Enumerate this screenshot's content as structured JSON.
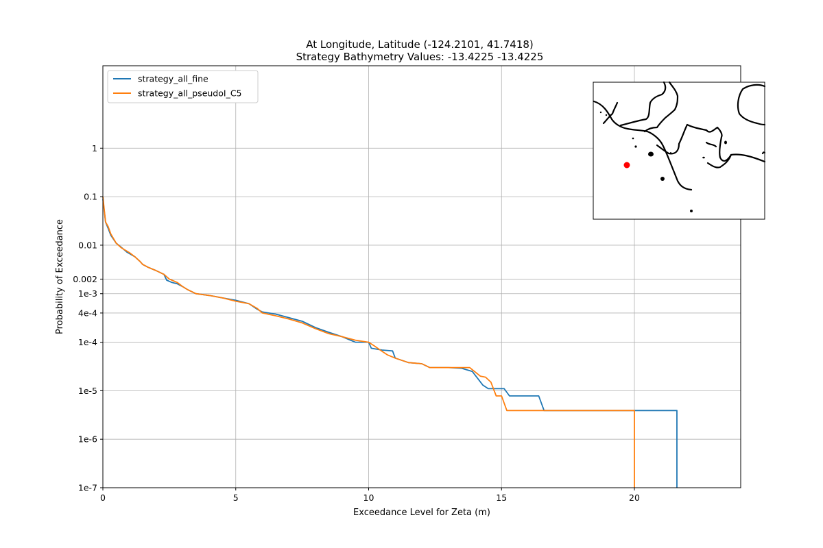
{
  "chart_data": {
    "type": "line",
    "title_line1": "At Longitude, Latitude (-124.2101,  41.7418)",
    "title_line2": "Strategy Bathymetry Values:  -13.4225  -13.4225",
    "xlabel": "Exceedance Level for Zeta (m)",
    "ylabel": "Probability of Exceedance",
    "xlim": [
      0,
      24
    ],
    "ylim": [
      1e-07,
      50
    ],
    "y_scale": "log",
    "grid": true,
    "legend_position": "upper-left",
    "x_ticks": [
      {
        "value": 0,
        "label": "0"
      },
      {
        "value": 5,
        "label": "5"
      },
      {
        "value": 10,
        "label": "10"
      },
      {
        "value": 15,
        "label": "15"
      },
      {
        "value": 20,
        "label": "20"
      }
    ],
    "y_ticks": [
      {
        "value": 1,
        "label": "1"
      },
      {
        "value": 0.1,
        "label": "0.1"
      },
      {
        "value": 0.01,
        "label": "0.01"
      },
      {
        "value": 0.002,
        "label": "0.002"
      },
      {
        "value": 0.001,
        "label": "1e-3"
      },
      {
        "value": 0.0004,
        "label": "4e-4"
      },
      {
        "value": 0.0001,
        "label": "1e-4"
      },
      {
        "value": 1e-05,
        "label": "1e-5"
      },
      {
        "value": 1e-06,
        "label": "1e-6"
      },
      {
        "value": 1e-07,
        "label": "1e-7"
      }
    ],
    "series": [
      {
        "name": "strategy_all_fine",
        "color": "#1f77b4",
        "points": [
          [
            0,
            0.09
          ],
          [
            0.1,
            0.03
          ],
          [
            0.2,
            0.022
          ],
          [
            0.3,
            0.016
          ],
          [
            0.5,
            0.011
          ],
          [
            0.7,
            0.009
          ],
          [
            0.9,
            0.0072
          ],
          [
            1.2,
            0.0058
          ],
          [
            1.4,
            0.0046
          ],
          [
            1.5,
            0.004
          ],
          [
            1.7,
            0.0035
          ],
          [
            2.0,
            0.003
          ],
          [
            2.3,
            0.0025
          ],
          [
            2.4,
            0.0019
          ],
          [
            2.6,
            0.0017
          ],
          [
            2.8,
            0.0016
          ],
          [
            3.0,
            0.0014
          ],
          [
            3.2,
            0.0012
          ],
          [
            3.5,
            0.001
          ],
          [
            4.0,
            0.00092
          ],
          [
            4.5,
            0.00082
          ],
          [
            5.0,
            0.00073
          ],
          [
            5.5,
            0.00062
          ],
          [
            5.8,
            0.00048
          ],
          [
            6.0,
            0.00042
          ],
          [
            6.5,
            0.00038
          ],
          [
            7.0,
            0.00032
          ],
          [
            7.5,
            0.00027
          ],
          [
            8.0,
            0.0002
          ],
          [
            8.5,
            0.00016
          ],
          [
            9.0,
            0.00013
          ],
          [
            9.5,
            0.0001
          ],
          [
            10.0,
            0.0001
          ],
          [
            10.1,
            7.5e-05
          ],
          [
            10.5,
            6.9e-05
          ],
          [
            10.9,
            6.6e-05
          ],
          [
            11.0,
            4.7e-05
          ],
          [
            11.5,
            3.8e-05
          ],
          [
            12.0,
            3.6e-05
          ],
          [
            12.3,
            3e-05
          ],
          [
            13.0,
            3e-05
          ],
          [
            13.5,
            2.9e-05
          ],
          [
            13.9,
            2.5e-05
          ],
          [
            14.1,
            1.8e-05
          ],
          [
            14.3,
            1.3e-05
          ],
          [
            14.5,
            1.1e-05
          ],
          [
            15.0,
            1.1e-05
          ],
          [
            15.1,
            1.1e-05
          ],
          [
            15.3,
            7.8e-06
          ],
          [
            16.4,
            7.8e-06
          ],
          [
            16.6,
            3.9e-06
          ],
          [
            21.6,
            3.9e-06
          ],
          [
            21.6,
            1e-07
          ]
        ]
      },
      {
        "name": "strategy_all_pseudoI_C5",
        "color": "#ff7f0e",
        "points": [
          [
            0,
            0.1
          ],
          [
            0.1,
            0.03
          ],
          [
            0.2,
            0.024
          ],
          [
            0.3,
            0.017
          ],
          [
            0.5,
            0.011
          ],
          [
            0.7,
            0.0088
          ],
          [
            1.0,
            0.007
          ],
          [
            1.2,
            0.0058
          ],
          [
            1.4,
            0.0046
          ],
          [
            1.5,
            0.004
          ],
          [
            1.7,
            0.0035
          ],
          [
            2.0,
            0.003
          ],
          [
            2.3,
            0.0025
          ],
          [
            2.5,
            0.002
          ],
          [
            2.8,
            0.0017
          ],
          [
            3.0,
            0.0014
          ],
          [
            3.2,
            0.0012
          ],
          [
            3.5,
            0.001
          ],
          [
            4.0,
            0.00092
          ],
          [
            4.5,
            0.00082
          ],
          [
            5.0,
            0.0007
          ],
          [
            5.5,
            0.00062
          ],
          [
            5.8,
            0.0005
          ],
          [
            6.0,
            0.0004
          ],
          [
            6.5,
            0.00035
          ],
          [
            7.0,
            0.0003
          ],
          [
            7.5,
            0.00025
          ],
          [
            8.0,
            0.00019
          ],
          [
            8.5,
            0.00015
          ],
          [
            9.0,
            0.00013
          ],
          [
            9.5,
            0.00011
          ],
          [
            10.0,
            0.0001
          ],
          [
            10.2,
            8.5e-05
          ],
          [
            10.5,
            6.5e-05
          ],
          [
            10.7,
            5.5e-05
          ],
          [
            11.0,
            4.7e-05
          ],
          [
            11.5,
            3.8e-05
          ],
          [
            12.0,
            3.6e-05
          ],
          [
            12.3,
            3e-05
          ],
          [
            13.0,
            3e-05
          ],
          [
            13.8,
            3e-05
          ],
          [
            14.2,
            2e-05
          ],
          [
            14.4,
            1.9e-05
          ],
          [
            14.6,
            1.5e-05
          ],
          [
            14.8,
            7.8e-06
          ],
          [
            15.0,
            7.8e-06
          ],
          [
            15.2,
            3.9e-06
          ],
          [
            20.0,
            3.9e-06
          ],
          [
            20.0,
            1e-07
          ]
        ]
      }
    ],
    "inset_marker": {
      "color": "#ff0000"
    }
  }
}
